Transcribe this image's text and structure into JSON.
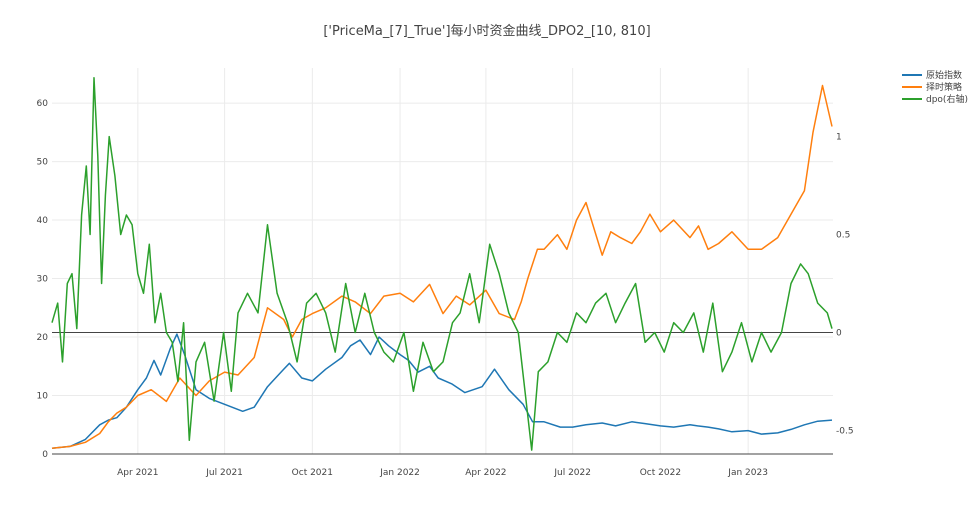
{
  "chart_data": {
    "type": "line",
    "title": "['PriceMa_[7]_True']每小时资金曲线_DPO2_[10, 810]",
    "xlabel": "",
    "ylabel": "",
    "x_ticks": [
      "Apr 2021",
      "Jul 2021",
      "Oct 2021",
      "Jan 2022",
      "Apr 2022",
      "Jul 2022",
      "Oct 2022",
      "Jan 2023"
    ],
    "x_range": [
      "2021-01-01",
      "2023-03-31"
    ],
    "y_left": {
      "range": [
        0,
        66
      ],
      "ticks": [
        0,
        10,
        20,
        30,
        40,
        50,
        60
      ]
    },
    "y_right": {
      "range": [
        -0.62,
        1.35
      ],
      "ticks": [
        "-0.5",
        "0",
        "0.5",
        "1"
      ]
    },
    "grid": true,
    "legend_position": "top-right",
    "series": [
      {
        "name": "原始指数",
        "axis": "left",
        "color": "#1f77b4",
        "x": [
          "2021-01-01",
          "2021-01-20",
          "2021-02-05",
          "2021-02-20",
          "2021-03-01",
          "2021-03-10",
          "2021-03-20",
          "2021-04-01",
          "2021-04-10",
          "2021-04-18",
          "2021-04-25",
          "2021-05-05",
          "2021-05-12",
          "2021-05-20",
          "2021-06-01",
          "2021-06-15",
          "2021-07-01",
          "2021-07-20",
          "2021-08-01",
          "2021-08-15",
          "2021-09-01",
          "2021-09-07",
          "2021-09-20",
          "2021-10-01",
          "2021-10-15",
          "2021-11-01",
          "2021-11-10",
          "2021-11-20",
          "2021-12-01",
          "2021-12-10",
          "2021-12-20",
          "2022-01-01",
          "2022-01-10",
          "2022-01-20",
          "2022-02-01",
          "2022-02-10",
          "2022-02-24",
          "2022-03-10",
          "2022-03-28",
          "2022-04-10",
          "2022-04-25",
          "2022-05-10",
          "2022-05-20",
          "2022-06-01",
          "2022-06-18",
          "2022-07-01",
          "2022-07-15",
          "2022-08-01",
          "2022-08-15",
          "2022-09-01",
          "2022-09-15",
          "2022-10-01",
          "2022-10-15",
          "2022-11-01",
          "2022-11-09",
          "2022-11-20",
          "2022-12-01",
          "2022-12-15",
          "2023-01-01",
          "2023-01-15",
          "2023-02-01",
          "2023-02-15",
          "2023-03-01",
          "2023-03-15",
          "2023-03-30"
        ],
        "y": [
          1.0,
          1.3,
          2.5,
          5.0,
          5.8,
          6.2,
          8.0,
          11.0,
          13.0,
          16.0,
          13.5,
          18.0,
          20.5,
          17.0,
          11.0,
          9.5,
          8.5,
          7.3,
          8.0,
          11.5,
          14.5,
          15.5,
          13.0,
          12.5,
          14.5,
          16.5,
          18.5,
          19.5,
          17.0,
          20.0,
          18.5,
          17.0,
          16.0,
          14.0,
          15.0,
          13.0,
          12.0,
          10.5,
          11.5,
          14.5,
          11.0,
          8.5,
          5.5,
          5.5,
          4.6,
          4.6,
          5.0,
          5.3,
          4.8,
          5.5,
          5.2,
          4.8,
          4.6,
          5.0,
          4.8,
          4.6,
          4.3,
          3.8,
          4.0,
          3.4,
          3.6,
          4.2,
          5.0,
          5.6,
          5.8
        ]
      },
      {
        "name": "择时策略",
        "axis": "left",
        "color": "#ff7f0e",
        "x": [
          "2021-01-01",
          "2021-01-20",
          "2021-02-05",
          "2021-02-20",
          "2021-03-01",
          "2021-03-10",
          "2021-03-20",
          "2021-04-01",
          "2021-04-15",
          "2021-05-01",
          "2021-05-15",
          "2021-06-01",
          "2021-06-15",
          "2021-07-01",
          "2021-07-15",
          "2021-08-01",
          "2021-08-15",
          "2021-09-01",
          "2021-09-10",
          "2021-09-20",
          "2021-10-01",
          "2021-10-15",
          "2021-11-01",
          "2021-11-15",
          "2021-12-01",
          "2021-12-15",
          "2022-01-01",
          "2022-01-15",
          "2022-02-01",
          "2022-02-15",
          "2022-03-01",
          "2022-03-15",
          "2022-04-01",
          "2022-04-15",
          "2022-05-01",
          "2022-05-08",
          "2022-05-15",
          "2022-05-25",
          "2022-06-01",
          "2022-06-15",
          "2022-06-25",
          "2022-07-05",
          "2022-07-15",
          "2022-08-01",
          "2022-08-10",
          "2022-08-20",
          "2022-09-01",
          "2022-09-10",
          "2022-09-20",
          "2022-10-01",
          "2022-10-15",
          "2022-11-01",
          "2022-11-10",
          "2022-11-20",
          "2022-12-01",
          "2022-12-15",
          "2023-01-01",
          "2023-01-15",
          "2023-02-01",
          "2023-02-15",
          "2023-03-01",
          "2023-03-10",
          "2023-03-20",
          "2023-03-30"
        ],
        "y": [
          1.0,
          1.3,
          2.0,
          3.5,
          5.5,
          7.0,
          8.0,
          10.0,
          11.0,
          9.0,
          13.0,
          10.0,
          12.5,
          14.0,
          13.5,
          16.5,
          25.0,
          23.0,
          20.0,
          23.0,
          24.0,
          25.0,
          27.0,
          26.0,
          24.0,
          27.0,
          27.5,
          26.0,
          29.0,
          24.0,
          27.0,
          25.5,
          28.0,
          24.0,
          23.0,
          26.0,
          30.0,
          35.0,
          35.0,
          37.5,
          35.0,
          40.0,
          43.0,
          34.0,
          38.0,
          37.0,
          36.0,
          38.0,
          41.0,
          38.0,
          40.0,
          37.0,
          39.0,
          35.0,
          36.0,
          38.0,
          35.0,
          35.0,
          37.0,
          41.0,
          45.0,
          55.0,
          63.0,
          56.0
        ]
      },
      {
        "name": "dpo(右轴)",
        "axis": "right",
        "color": "#2ca02c",
        "x": [
          "2021-01-01",
          "2021-01-07",
          "2021-01-12",
          "2021-01-17",
          "2021-01-22",
          "2021-01-27",
          "2021-02-01",
          "2021-02-06",
          "2021-02-10",
          "2021-02-14",
          "2021-02-18",
          "2021-02-22",
          "2021-02-26",
          "2021-03-02",
          "2021-03-08",
          "2021-03-14",
          "2021-03-20",
          "2021-03-26",
          "2021-04-01",
          "2021-04-07",
          "2021-04-13",
          "2021-04-19",
          "2021-04-25",
          "2021-05-01",
          "2021-05-07",
          "2021-05-13",
          "2021-05-19",
          "2021-05-25",
          "2021-06-01",
          "2021-06-10",
          "2021-06-20",
          "2021-06-30",
          "2021-07-08",
          "2021-07-15",
          "2021-07-25",
          "2021-08-05",
          "2021-08-15",
          "2021-08-25",
          "2021-09-05",
          "2021-09-15",
          "2021-09-25",
          "2021-10-05",
          "2021-10-15",
          "2021-10-25",
          "2021-11-05",
          "2021-11-15",
          "2021-11-25",
          "2021-12-05",
          "2021-12-15",
          "2021-12-25",
          "2022-01-05",
          "2022-01-15",
          "2022-01-25",
          "2022-02-05",
          "2022-02-15",
          "2022-02-25",
          "2022-03-05",
          "2022-03-15",
          "2022-03-25",
          "2022-04-05",
          "2022-04-15",
          "2022-04-25",
          "2022-05-05",
          "2022-05-12",
          "2022-05-19",
          "2022-05-26",
          "2022-06-05",
          "2022-06-15",
          "2022-06-25",
          "2022-07-05",
          "2022-07-15",
          "2022-07-25",
          "2022-08-05",
          "2022-08-15",
          "2022-08-25",
          "2022-09-05",
          "2022-09-15",
          "2022-09-25",
          "2022-10-05",
          "2022-10-15",
          "2022-10-25",
          "2022-11-05",
          "2022-11-15",
          "2022-11-25",
          "2022-12-05",
          "2022-12-15",
          "2022-12-25",
          "2023-01-05",
          "2023-01-15",
          "2023-01-25",
          "2023-02-05",
          "2023-02-15",
          "2023-02-25",
          "2023-03-05",
          "2023-03-15",
          "2023-03-25",
          "2023-03-30"
        ],
        "y": [
          0.05,
          0.15,
          -0.15,
          0.25,
          0.3,
          0.02,
          0.6,
          0.85,
          0.5,
          1.3,
          0.9,
          0.25,
          0.7,
          1.0,
          0.8,
          0.5,
          0.6,
          0.55,
          0.3,
          0.2,
          0.45,
          0.05,
          0.2,
          0.0,
          -0.05,
          -0.25,
          0.05,
          -0.55,
          -0.15,
          -0.05,
          -0.35,
          0.0,
          -0.3,
          0.1,
          0.2,
          0.1,
          0.55,
          0.2,
          0.05,
          -0.15,
          0.15,
          0.2,
          0.1,
          -0.1,
          0.25,
          0.0,
          0.2,
          0.0,
          -0.1,
          -0.15,
          0.0,
          -0.3,
          -0.05,
          -0.2,
          -0.15,
          0.05,
          0.1,
          0.3,
          0.05,
          0.45,
          0.3,
          0.1,
          0.0,
          -0.3,
          -0.6,
          -0.2,
          -0.15,
          0.0,
          -0.05,
          0.1,
          0.05,
          0.15,
          0.2,
          0.05,
          0.15,
          0.25,
          -0.05,
          0.0,
          -0.1,
          0.05,
          0.0,
          0.1,
          -0.1,
          0.15,
          -0.2,
          -0.1,
          0.05,
          -0.15,
          0.0,
          -0.1,
          0.0,
          0.25,
          0.35,
          0.3,
          0.15,
          0.1,
          0.02
        ]
      }
    ]
  }
}
